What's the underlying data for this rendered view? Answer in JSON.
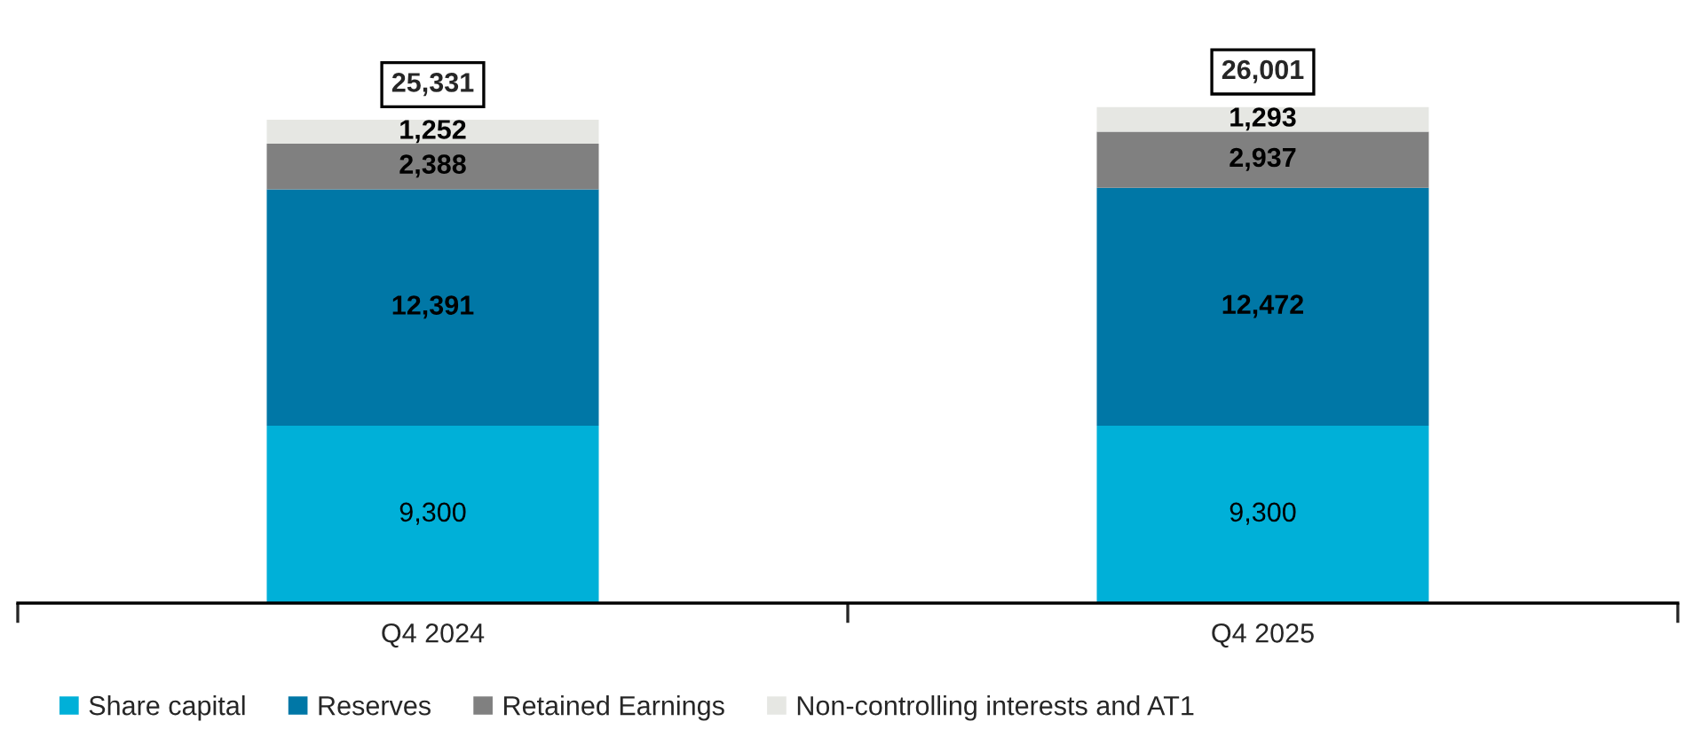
{
  "chart_data": {
    "type": "bar",
    "stacked": true,
    "legend": "bottom",
    "grid": false,
    "categories": [
      "Q4 2024",
      "Q4 2025"
    ],
    "series": [
      {
        "name": "Share capital",
        "color": "#00b0d8",
        "values": [
          9300,
          9300
        ],
        "value_labels": [
          "9,300",
          "9,300"
        ]
      },
      {
        "name": "Reserves",
        "color": "#0077a6",
        "values": [
          12391,
          12472
        ],
        "value_labels": [
          "12,391",
          "12,472"
        ]
      },
      {
        "name": "Retained Earnings",
        "color": "#808080",
        "values": [
          2388,
          2937
        ],
        "value_labels": [
          "2,388",
          "2,937"
        ]
      },
      {
        "name": "Non-controlling interests and AT1",
        "color": "#e6e7e3",
        "values": [
          1252,
          1293
        ],
        "value_labels": [
          "1,252",
          "1,293"
        ]
      }
    ],
    "totals": [
      "25,331",
      "26,001"
    ]
  }
}
